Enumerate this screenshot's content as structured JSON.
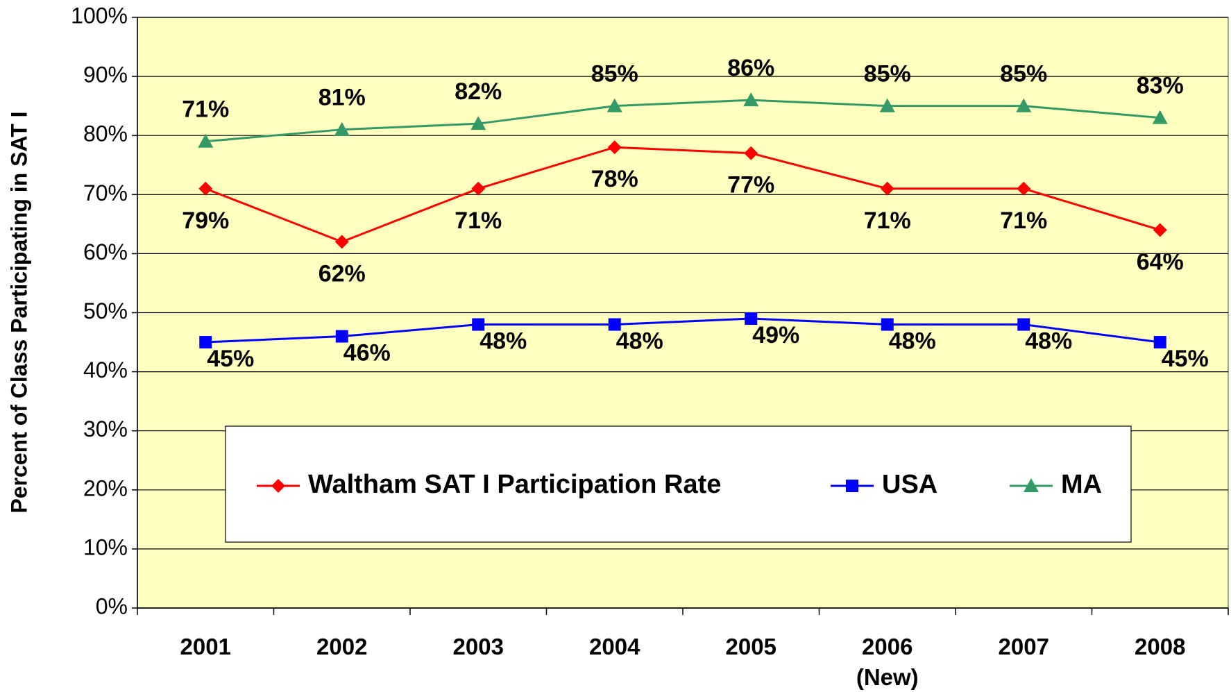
{
  "chart_data": {
    "type": "line",
    "y_axis_label": "Percent of Class Participating in SAT I",
    "categories": [
      "2001",
      "2002",
      "2003",
      "2004",
      "2005",
      "2006 (New)",
      "2007",
      "2008"
    ],
    "ylim": [
      0,
      100
    ],
    "yticks": [
      {
        "value": 0,
        "label": "0%"
      },
      {
        "value": 10,
        "label": "10%"
      },
      {
        "value": 20,
        "label": "20%"
      },
      {
        "value": 30,
        "label": "30%"
      },
      {
        "value": 40,
        "label": "40%"
      },
      {
        "value": 50,
        "label": "50%"
      },
      {
        "value": 60,
        "label": "60%"
      },
      {
        "value": 70,
        "label": "70%"
      },
      {
        "value": 80,
        "label": "80%"
      },
      {
        "value": 90,
        "label": "90%"
      },
      {
        "value": 100,
        "label": "100%"
      }
    ],
    "grid": true,
    "legend": "bottom",
    "series": [
      {
        "name": "Waltham SAT I Participation Rate",
        "color": "#ff0000",
        "marker": "diamond",
        "values": [
          71,
          62,
          71,
          78,
          77,
          71,
          71,
          64
        ],
        "value_labels": [
          "71%",
          "62%",
          "71%",
          "78%",
          "77%",
          "71%",
          "71%",
          "64%"
        ]
      },
      {
        "name": "USA",
        "color": "#0000ff",
        "marker": "square",
        "values": [
          45,
          46,
          48,
          48,
          49,
          48,
          48,
          45
        ],
        "value_labels": [
          "45%",
          "46%",
          "48%",
          "48%",
          "49%",
          "48%",
          "48%",
          "45%"
        ]
      },
      {
        "name": "MA",
        "color": "#339966",
        "marker": "triangle",
        "values": [
          79,
          81,
          82,
          85,
          86,
          85,
          85,
          83
        ],
        "value_labels": [
          "79%",
          "81%",
          "82%",
          "85%",
          "86%",
          "85%",
          "85%",
          "83%"
        ]
      }
    ]
  }
}
